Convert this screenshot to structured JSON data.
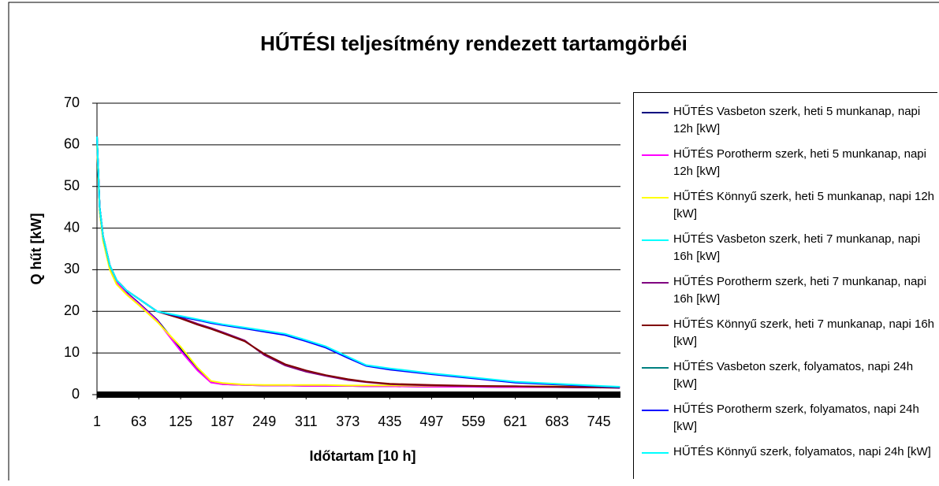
{
  "chart_data": {
    "type": "line",
    "title": "HŰTÉSI teljesítmény rendezett tartamgörbéi",
    "x_label": "Időtartam [10 h]",
    "y_label": "Q hűt [kW]",
    "x": [
      1,
      5,
      10,
      20,
      30,
      45,
      63,
      90,
      125,
      150,
      170,
      187,
      220,
      249,
      280,
      311,
      340,
      373,
      400,
      435,
      497,
      559,
      621,
      683,
      745,
      776
    ],
    "xlim": [
      1,
      777
    ],
    "xticks": [
      1,
      63,
      125,
      187,
      249,
      311,
      373,
      435,
      497,
      559,
      621,
      683,
      745
    ],
    "ylim": [
      0,
      70
    ],
    "yticks": [
      0,
      10,
      20,
      30,
      40,
      50,
      60,
      70
    ],
    "grid": true,
    "legend": "right",
    "series": [
      {
        "name": "HŰTÉS Vasbeton szerk, heti 5 munkanap, napi 12h [kW]",
        "color": "#000080",
        "values": [
          61,
          45,
          38,
          31,
          27,
          24.5,
          22,
          18,
          11,
          6,
          3,
          2.5,
          2.3,
          2.2,
          2.2,
          2.1,
          2.1,
          2.1,
          2,
          2,
          1.9,
          1.9,
          1.8,
          1.8,
          1.7,
          1.7
        ]
      },
      {
        "name": "HŰTÉS Porotherm szerk, heti 5 munkanap, napi 12h [kW]",
        "color": "#ff00ff",
        "values": [
          61,
          45,
          38,
          31,
          27,
          24.3,
          21.8,
          17.8,
          10.5,
          5.8,
          2.9,
          2.5,
          2.3,
          2.2,
          2.2,
          2.1,
          2.1,
          2.1,
          2,
          2,
          1.9,
          1.9,
          1.8,
          1.8,
          1.7,
          1.7
        ]
      },
      {
        "name": "HŰTÉS Könnyű szerk, heti 5 munkanap, napi 12h [kW]",
        "color": "#ffff00",
        "values": [
          60,
          44,
          37,
          30,
          26.5,
          24,
          21.5,
          17.5,
          11.5,
          6.5,
          3.3,
          2.8,
          2.4,
          2.3,
          2.3,
          2.3,
          2.3,
          2.2,
          2.2,
          2.2,
          2.1,
          2.1,
          2,
          2,
          1.9,
          1.9
        ]
      },
      {
        "name": "HŰTÉS Vasbeton szerk, heti 7 munkanap, napi 16h [kW]",
        "color": "#00ffff",
        "values": [
          62,
          45,
          38,
          31,
          27.5,
          25,
          23,
          20,
          18.8,
          18,
          17.3,
          16.8,
          16,
          15.3,
          14.5,
          13,
          11.5,
          9,
          7,
          6.2,
          5,
          4,
          3,
          2.5,
          2,
          1.8
        ]
      },
      {
        "name": "HŰTÉS Porotherm szerk, heti 7 munkanap, napi 16h [kW]",
        "color": "#800080",
        "values": [
          62,
          45,
          38,
          31,
          27.5,
          25,
          23,
          20,
          18.5,
          17,
          16,
          15,
          13,
          9.5,
          7,
          5.5,
          4.5,
          3.5,
          3,
          2.5,
          2.2,
          2,
          2,
          1.8,
          1.7,
          1.6
        ]
      },
      {
        "name": "HŰTÉS Könnyű szerk, heti 7 munkanap, napi 16h [kW]",
        "color": "#800000",
        "values": [
          62,
          45,
          38,
          31,
          27.5,
          25,
          23,
          20,
          18.3,
          16.8,
          15.8,
          14.8,
          12.8,
          9.8,
          7.3,
          5.8,
          4.7,
          3.7,
          3.1,
          2.6,
          2.3,
          2.1,
          2,
          1.9,
          1.8,
          1.7
        ]
      },
      {
        "name": "HŰTÉS Vasbeton szerk, folyamatos, napi 24h [kW]",
        "color": "#008080",
        "values": [
          62,
          45,
          38,
          31,
          27.5,
          25,
          23,
          20,
          18.8,
          18,
          17.3,
          16.8,
          16,
          15.2,
          14.4,
          12.9,
          11.4,
          8.9,
          7,
          6.1,
          5,
          4,
          3,
          2.5,
          2,
          1.8
        ]
      },
      {
        "name": "HŰTÉS Porotherm szerk, folyamatos, napi 24h [kW]",
        "color": "#0000ff",
        "values": [
          62,
          45,
          38,
          31,
          27.5,
          25,
          23,
          20,
          18.7,
          17.9,
          17.2,
          16.7,
          15.9,
          15.1,
          14.3,
          12.8,
          11.3,
          8.8,
          6.9,
          6,
          4.9,
          3.9,
          2.9,
          2.4,
          2,
          1.8
        ]
      },
      {
        "name": "HŰTÉS Könnyű szerk, folyamatos, napi 24h [kW]",
        "color": "#00ffff",
        "values": [
          62,
          45,
          38,
          31,
          27.5,
          25,
          23,
          20,
          18.9,
          18.1,
          17.4,
          16.9,
          16.1,
          15.4,
          14.6,
          13.1,
          11.6,
          9.1,
          7.1,
          6.3,
          5.1,
          4.1,
          3.1,
          2.6,
          2.1,
          1.9
        ]
      }
    ]
  }
}
